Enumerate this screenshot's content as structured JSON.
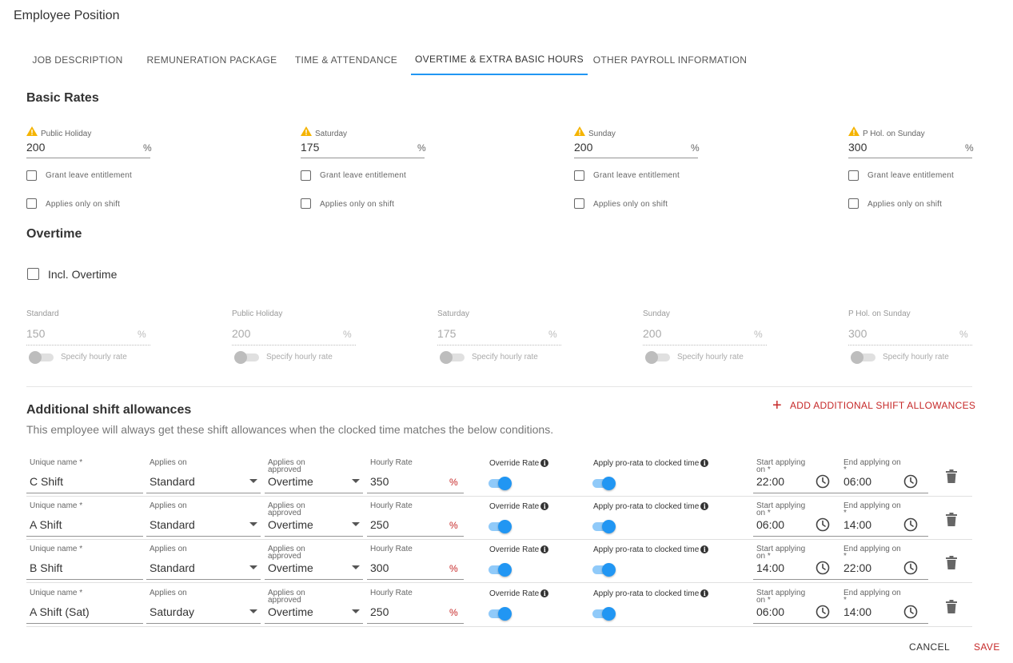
{
  "page_title": "Employee Position",
  "tabs": [
    {
      "label": "JOB DESCRIPTION"
    },
    {
      "label": "REMUNERATION PACKAGE"
    },
    {
      "label": "TIME & ATTENDANCE"
    },
    {
      "label": "OVERTIME & EXTRA BASIC HOURS"
    },
    {
      "label": "OTHER PAYROLL INFORMATION"
    }
  ],
  "active_tab": "OVERTIME & EXTRA BASIC HOURS",
  "basic_rates": {
    "title": "Basic Rates",
    "fields": [
      {
        "label": "Public Holiday",
        "value": "200",
        "unit": "%",
        "grant_leave": "Grant leave entitlement",
        "applies_shift": "Applies only on shift"
      },
      {
        "label": "Saturday",
        "value": "175",
        "unit": "%",
        "grant_leave": "Grant leave entitlement",
        "applies_shift": "Applies only on shift"
      },
      {
        "label": "Sunday",
        "value": "200",
        "unit": "%",
        "grant_leave": "Grant leave entitlement",
        "applies_shift": "Applies only on shift"
      },
      {
        "label": "P Hol. on Sunday",
        "value": "300",
        "unit": "%",
        "grant_leave": "Grant leave entitlement",
        "applies_shift": "Applies only on shift"
      }
    ]
  },
  "overtime": {
    "title": "Overtime",
    "incl_label": "Incl. Overtime",
    "fields": [
      {
        "label": "Standard",
        "value": "150",
        "unit": "%",
        "switch_label": "Specify hourly rate"
      },
      {
        "label": "Public Holiday",
        "value": "200",
        "unit": "%",
        "switch_label": "Specify hourly rate"
      },
      {
        "label": "Saturday",
        "value": "175",
        "unit": "%",
        "switch_label": "Specify hourly rate"
      },
      {
        "label": "Sunday",
        "value": "200",
        "unit": "%",
        "switch_label": "Specify hourly rate"
      },
      {
        "label": "P Hol. on Sunday",
        "value": "300",
        "unit": "%",
        "switch_label": "Specify hourly rate"
      }
    ]
  },
  "shift_allowances": {
    "title": "Additional shift allowances",
    "subtitle": "This employee will always get these shift allowances when the clocked time matches the below conditions.",
    "add_label": "ADD ADDITIONAL SHIFT ALLOWANCES",
    "labels": {
      "unique_name": "Unique name *",
      "applies_on": "Applies on",
      "applies_approved_1": "Applies on",
      "applies_approved_2": "approved",
      "hourly_rate": "Hourly Rate",
      "override_rate": "Override Rate",
      "pro_rata": "Apply pro-rata to clocked time",
      "start_1": "Start applying",
      "start_2": "on *",
      "end_1": "End applying on",
      "end_2": "*"
    },
    "rows": [
      {
        "name": "C Shift",
        "applies_on": "Standard",
        "applies_approved": "Overtime",
        "rate": "350",
        "unit": "%",
        "override": true,
        "pro_rata": true,
        "start": "22:00",
        "end": "06:00"
      },
      {
        "name": "A Shift",
        "applies_on": "Standard",
        "applies_approved": "Overtime",
        "rate": "250",
        "unit": "%",
        "override": true,
        "pro_rata": true,
        "start": "06:00",
        "end": "14:00"
      },
      {
        "name": "B Shift",
        "applies_on": "Standard",
        "applies_approved": "Overtime",
        "rate": "300",
        "unit": "%",
        "override": true,
        "pro_rata": true,
        "start": "14:00",
        "end": "22:00"
      },
      {
        "name": "A Shift (Sat)",
        "applies_on": "Saturday",
        "applies_approved": "Overtime",
        "rate": "250",
        "unit": "%",
        "override": true,
        "pro_rata": true,
        "start": "06:00",
        "end": "14:00"
      }
    ]
  },
  "footer": {
    "cancel": "CANCEL",
    "save": "SAVE"
  },
  "colors": {
    "accent": "#2196f3",
    "danger": "#c62828",
    "warning": "#f5b400"
  }
}
